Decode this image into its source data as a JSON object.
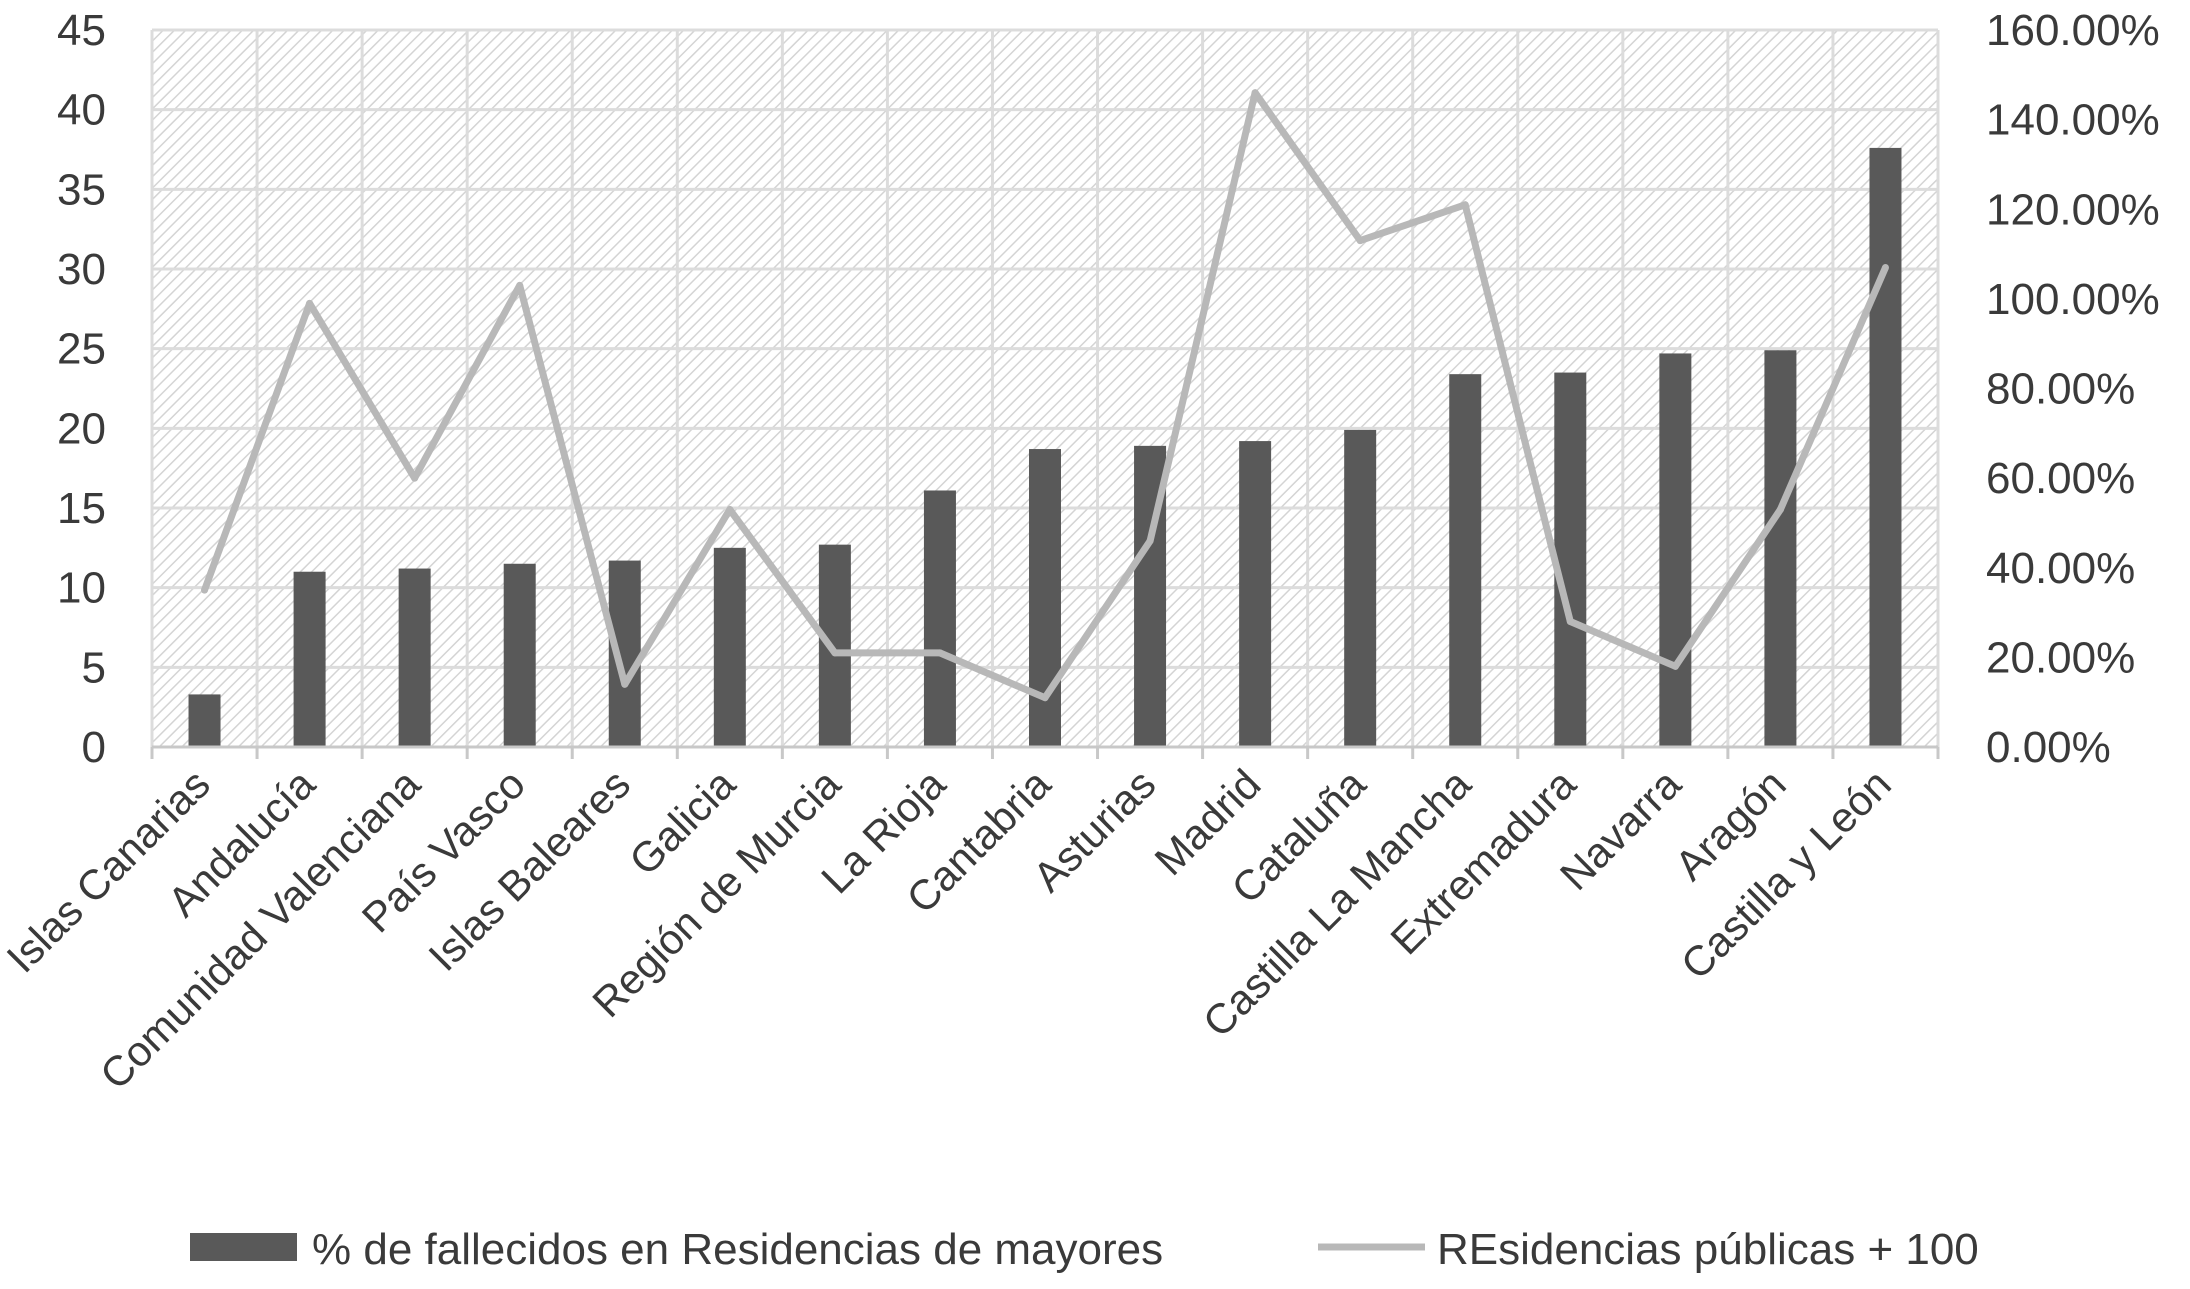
{
  "chart_data": {
    "type": "bar+line",
    "categories": [
      "Islas Canarias",
      "Andalucía",
      "Comunidad Valenciana",
      "País Vasco",
      "Islas Baleares",
      "Galicia",
      "Región de Murcia",
      "La Rioja",
      "Cantabria",
      "Asturias",
      "Madrid",
      "Cataluña",
      "Castilla La Mancha",
      "Extremadura",
      "Navarra",
      "Aragón",
      "Castilla y León"
    ],
    "series": [
      {
        "name": "% de fallecidos en Residencias de mayores",
        "type": "bar",
        "axis": "left",
        "color": "#595959",
        "values": [
          3.3,
          11.0,
          11.2,
          11.5,
          11.7,
          12.5,
          12.7,
          16.1,
          18.7,
          18.9,
          19.2,
          19.9,
          23.4,
          23.5,
          24.7,
          24.9,
          37.6
        ]
      },
      {
        "name": "REsidencias públicas + 100",
        "type": "line",
        "axis": "right",
        "color": "#b8b8b8",
        "values": [
          0.35,
          0.99,
          0.6,
          1.03,
          0.14,
          0.53,
          0.21,
          0.21,
          0.11,
          0.46,
          1.46,
          1.13,
          1.21,
          0.28,
          0.18,
          0.53,
          1.07
        ]
      }
    ],
    "y_left": {
      "min": 0,
      "max": 45,
      "step": 5,
      "ticks": [
        "0",
        "5",
        "10",
        "15",
        "20",
        "25",
        "30",
        "35",
        "40",
        "45"
      ]
    },
    "y_right": {
      "min": 0,
      "max": 1.6,
      "step": 0.2,
      "ticks": [
        "0.00%",
        "20.00%",
        "40.00%",
        "60.00%",
        "80.00%",
        "100.00%",
        "120.00%",
        "140.00%",
        "160.00%"
      ]
    },
    "grid": true,
    "legend": "bottom"
  }
}
